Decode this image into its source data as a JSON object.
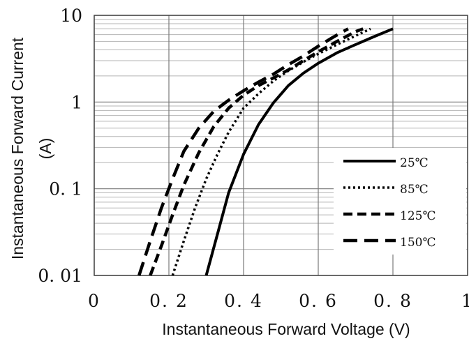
{
  "chart_data": {
    "type": "line",
    "title": "",
    "xlabel": "Instantaneous Forward Voltage (V)",
    "ylabel_lines": [
      "Instantaneous Forward Current",
      "(A)"
    ],
    "xlim": [
      0,
      1
    ],
    "ylim": [
      0.01,
      10
    ],
    "yscale": "log",
    "grid": true,
    "x_ticks": [
      {
        "value": 0,
        "label": "0"
      },
      {
        "value": 0.2,
        "label": "0. 2"
      },
      {
        "value": 0.4,
        "label": "0. 4"
      },
      {
        "value": 0.6,
        "label": "0. 6"
      },
      {
        "value": 0.8,
        "label": "0. 8"
      },
      {
        "value": 1,
        "label": "1"
      }
    ],
    "y_ticks": [
      {
        "value": 0.01,
        "label": "0. 01"
      },
      {
        "value": 0.1,
        "label": "0. 1"
      },
      {
        "value": 1,
        "label": "1"
      },
      {
        "value": 10,
        "label": "10"
      }
    ],
    "legend_position": "lower-right",
    "series": [
      {
        "name": "25℃",
        "style": "solid",
        "x": [
          0.3,
          0.33,
          0.36,
          0.4,
          0.44,
          0.48,
          0.52,
          0.56,
          0.6,
          0.65,
          0.7,
          0.75,
          0.8
        ],
        "y": [
          0.01,
          0.03,
          0.09,
          0.25,
          0.55,
          0.98,
          1.55,
          2.15,
          2.8,
          3.7,
          4.6,
          5.7,
          7.0
        ]
      },
      {
        "name": "85℃",
        "style": "dotted",
        "x": [
          0.21,
          0.24,
          0.27,
          0.3,
          0.33,
          0.36,
          0.4,
          0.44,
          0.48,
          0.52,
          0.56,
          0.6,
          0.65,
          0.7,
          0.74
        ],
        "y": [
          0.01,
          0.025,
          0.06,
          0.13,
          0.25,
          0.45,
          0.85,
          1.25,
          1.75,
          2.3,
          2.9,
          3.6,
          4.6,
          5.8,
          7.0
        ]
      },
      {
        "name": "125℃",
        "style": "dashed",
        "x": [
          0.15,
          0.18,
          0.21,
          0.24,
          0.28,
          0.32,
          0.36,
          0.4,
          0.44,
          0.48,
          0.52,
          0.56,
          0.6,
          0.65,
          0.7,
          0.72
        ],
        "y": [
          0.01,
          0.022,
          0.05,
          0.11,
          0.26,
          0.52,
          0.85,
          1.2,
          1.55,
          1.9,
          2.35,
          3.0,
          3.8,
          5.0,
          6.5,
          7.0
        ]
      },
      {
        "name": "150℃",
        "style": "long-dash",
        "x": [
          0.12,
          0.15,
          0.18,
          0.21,
          0.24,
          0.28,
          0.32,
          0.36,
          0.4,
          0.44,
          0.48,
          0.52,
          0.56,
          0.6,
          0.64,
          0.68
        ],
        "y": [
          0.01,
          0.025,
          0.06,
          0.13,
          0.27,
          0.5,
          0.78,
          1.05,
          1.35,
          1.7,
          2.1,
          2.7,
          3.4,
          4.4,
          5.6,
          7.0
        ]
      }
    ]
  }
}
